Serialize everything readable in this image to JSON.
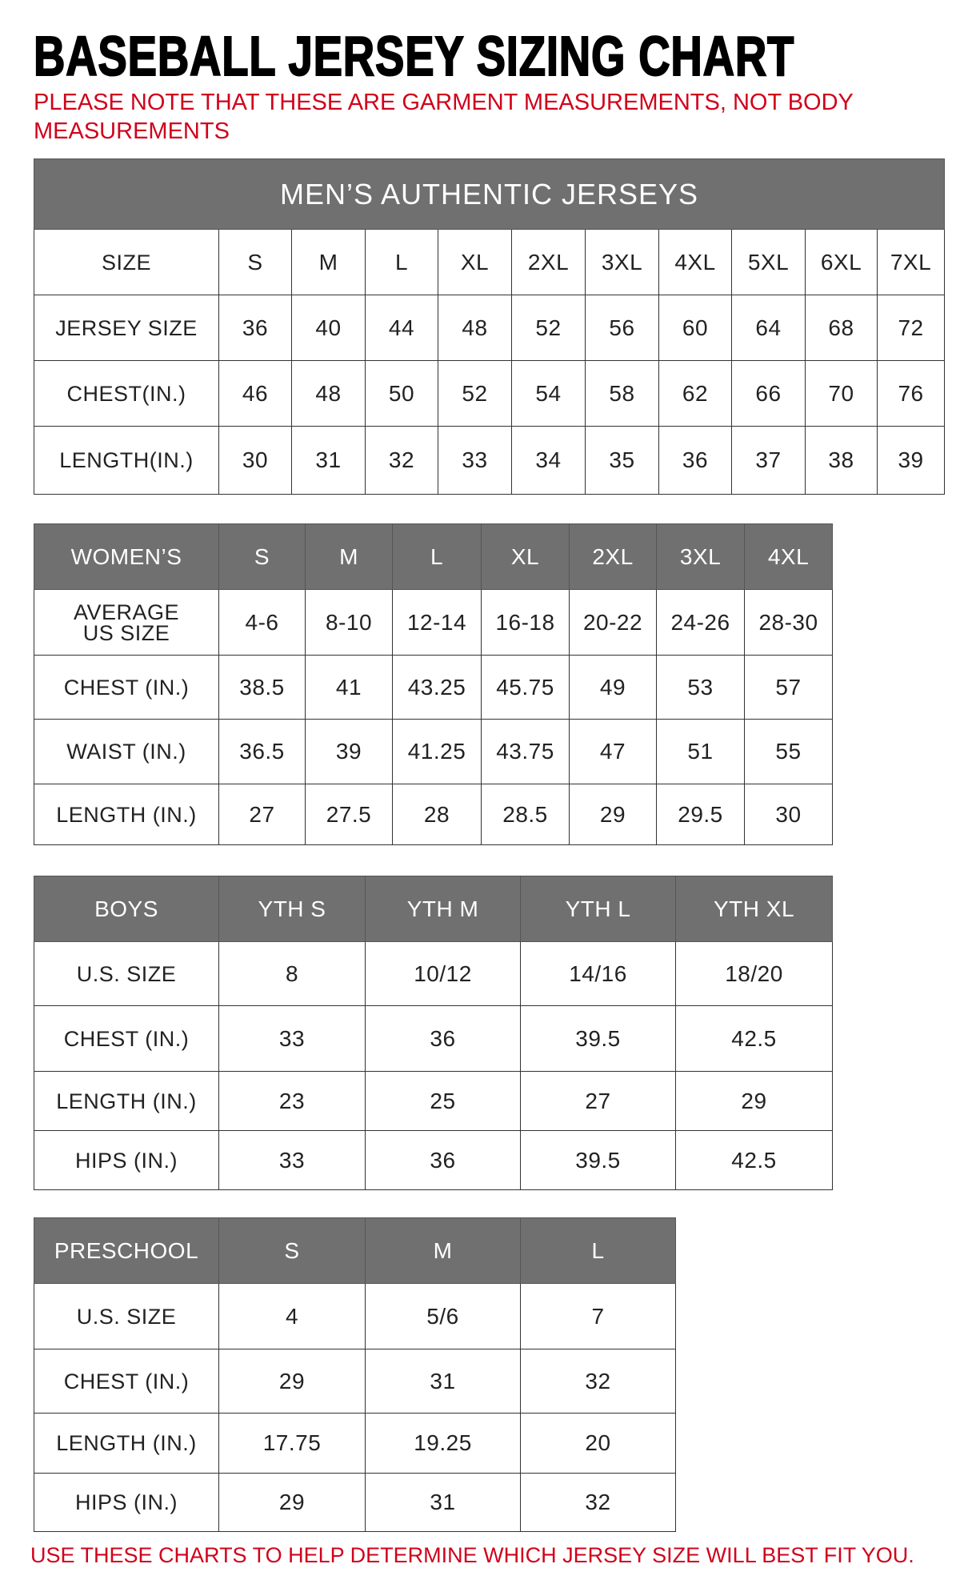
{
  "title": "BASEBALL JERSEY SIZING CHART",
  "note": "PLEASE NOTE THAT THESE ARE GARMENT MEASUREMENTS, NOT BODY MEASUREMENTS",
  "footer": "USE THESE CHARTS TO HELP DETERMINE WHICH JERSEY SIZE WILL BEST FIT YOU.",
  "colors": {
    "header_gray": "#707070",
    "note_red": "#d0021b"
  },
  "tables": [
    {
      "id": "mens",
      "caption": "MEN’S AUTHENTIC JERSEYS",
      "header_style": "plain",
      "header": [
        "SIZE",
        "S",
        "M",
        "L",
        "XL",
        "2XL",
        "3XL",
        "4XL",
        "5XL",
        "6XL",
        "7XL"
      ],
      "rows": [
        [
          "JERSEY SIZE",
          "36",
          "40",
          "44",
          "48",
          "52",
          "56",
          "60",
          "64",
          "68",
          "72"
        ],
        [
          "CHEST(IN.)",
          "46",
          "48",
          "50",
          "52",
          "54",
          "58",
          "62",
          "66",
          "70",
          "76"
        ],
        [
          "LENGTH(IN.)",
          "30",
          "31",
          "32",
          "33",
          "34",
          "35",
          "36",
          "37",
          "38",
          "39"
        ]
      ]
    },
    {
      "id": "womens",
      "header_style": "gray",
      "header": [
        "WOMEN’S",
        "S",
        "M",
        "L",
        "XL",
        "2XL",
        "3XL",
        "4XL"
      ],
      "rows": [
        [
          "AVERAGE US SIZE",
          "4-6",
          "8-10",
          "12-14",
          "16-18",
          "20-22",
          "24-26",
          "28-30"
        ],
        [
          "CHEST (IN.)",
          "38.5",
          "41",
          "43.25",
          "45.75",
          "49",
          "53",
          "57"
        ],
        [
          "WAIST (IN.)",
          "36.5",
          "39",
          "41.25",
          "43.75",
          "47",
          "51",
          "55"
        ],
        [
          "LENGTH (IN.)",
          "27",
          "27.5",
          "28",
          "28.5",
          "29",
          "29.5",
          "30"
        ]
      ]
    },
    {
      "id": "boys",
      "header_style": "gray",
      "header": [
        "BOYS",
        "YTH S",
        "YTH M",
        "YTH L",
        "YTH XL"
      ],
      "rows": [
        [
          "U.S. SIZE",
          "8",
          "10/12",
          "14/16",
          "18/20"
        ],
        [
          "CHEST (IN.)",
          "33",
          "36",
          "39.5",
          "42.5"
        ],
        [
          "LENGTH (IN.)",
          "23",
          "25",
          "27",
          "29"
        ],
        [
          "HIPS (IN.)",
          "33",
          "36",
          "39.5",
          "42.5"
        ]
      ]
    },
    {
      "id": "preschool",
      "header_style": "gray",
      "header": [
        "PRESCHOOL",
        "S",
        "M",
        "L"
      ],
      "rows": [
        [
          "U.S. SIZE",
          "4",
          "5/6",
          "7"
        ],
        [
          "CHEST (IN.)",
          "29",
          "31",
          "32"
        ],
        [
          "LENGTH (IN.)",
          "17.75",
          "19.25",
          "20"
        ],
        [
          "HIPS (IN.)",
          "29",
          "31",
          "32"
        ]
      ]
    }
  ]
}
